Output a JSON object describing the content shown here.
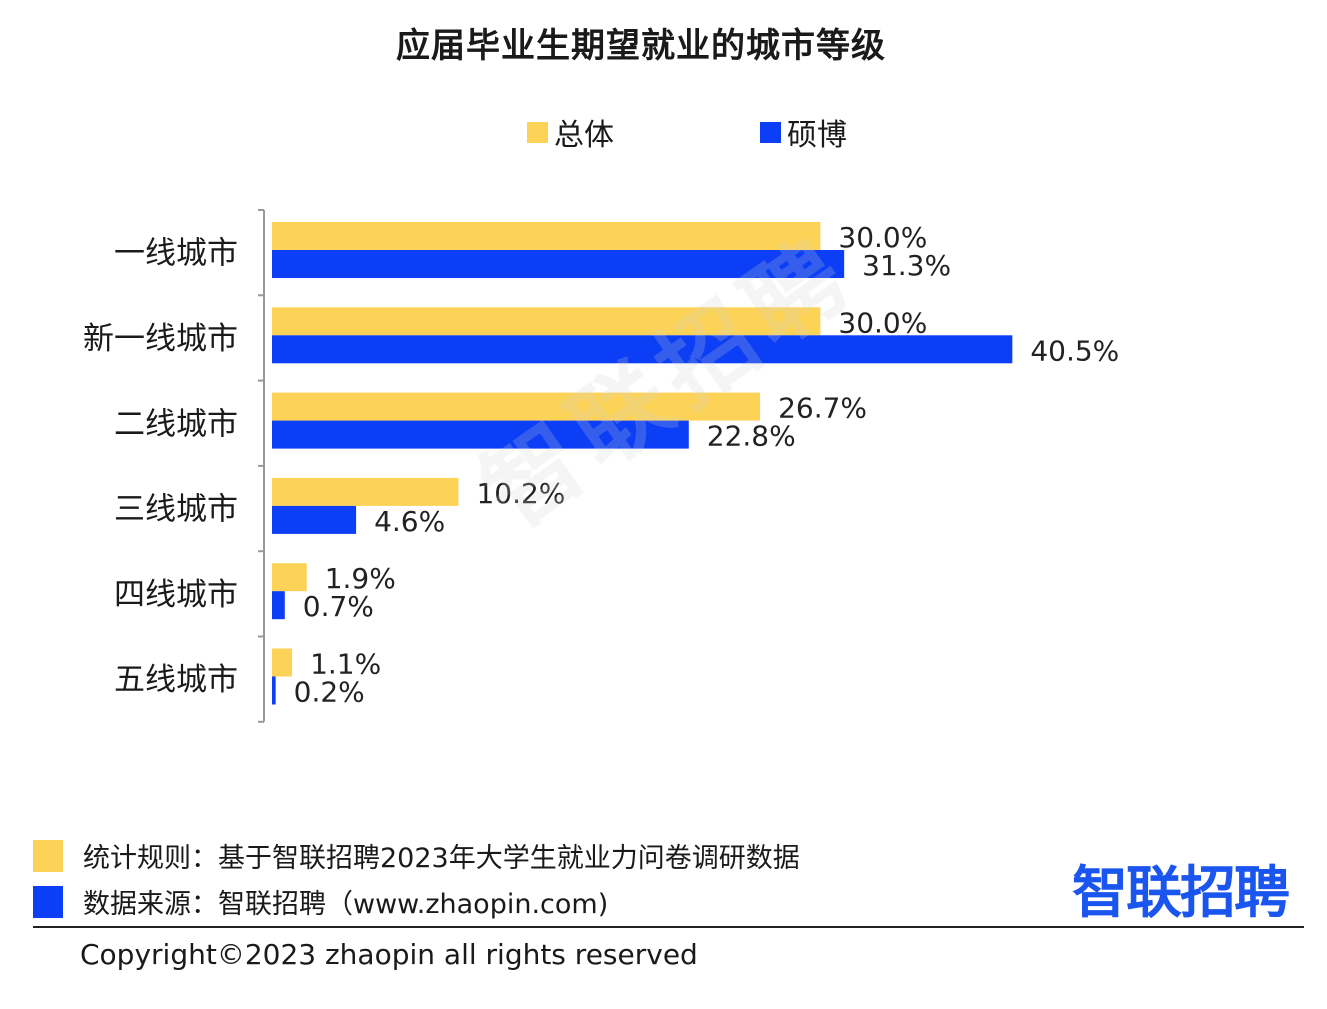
{
  "colors": {
    "overall": "#fdd357",
    "masters_phd": "#0b3ef5",
    "axis": "#999999"
  },
  "chart_data": {
    "type": "bar",
    "orientation": "horizontal",
    "title": "应届毕业生期望就业的城市等级",
    "categories": [
      "一线城市",
      "新一线城市",
      "二线城市",
      "三线城市",
      "四线城市",
      "五线城市"
    ],
    "series": [
      {
        "name": "总体",
        "values": [
          30.0,
          30.0,
          26.7,
          10.2,
          1.9,
          1.1
        ],
        "labels": [
          "30.0%",
          "30.0%",
          "26.7%",
          "10.2%",
          "1.9%",
          "1.1%"
        ]
      },
      {
        "name": "硕博",
        "values": [
          31.3,
          40.5,
          22.8,
          4.6,
          0.7,
          0.2
        ],
        "labels": [
          "31.3%",
          "40.5%",
          "22.8%",
          "4.6%",
          "0.7%",
          "0.2%"
        ]
      }
    ],
    "xlim": [
      0,
      45
    ],
    "legend_position": "top",
    "grid": false
  },
  "watermark": "智联招聘",
  "footer": {
    "rule_note": "统计规则：基于智联招聘2023年大学生就业力问卷调研数据",
    "source_note": "数据来源：智联招聘（www.zhaopin.com)",
    "copyright": "Copyright©2023 zhaopin all rights reserved",
    "logo": "智联招聘"
  }
}
